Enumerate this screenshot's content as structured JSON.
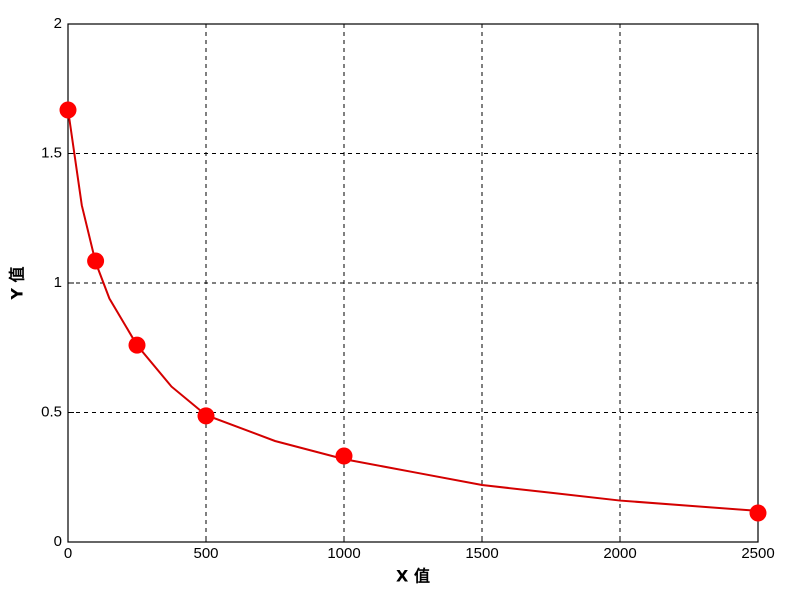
{
  "chart_data": {
    "type": "scatter",
    "xlabel": "X 值",
    "ylabel": "Y 值",
    "xlim": [
      0,
      2500
    ],
    "xticks": [
      0,
      500,
      1000,
      1500,
      2000,
      2500
    ],
    "ylim": [
      0,
      2
    ],
    "yticks": [
      0,
      0.5,
      1,
      1.5,
      2
    ],
    "grid": true,
    "series": [
      {
        "mode": "line",
        "color": "#d40000",
        "x": [
          0,
          50,
          100,
          150,
          250,
          375,
          500,
          750,
          1000,
          1250,
          1500,
          1750,
          2000,
          2250,
          2500
        ],
        "values": [
          1.67,
          1.3,
          1.08,
          0.94,
          0.76,
          0.6,
          0.49,
          0.39,
          0.32,
          0.27,
          0.22,
          0.19,
          0.16,
          0.14,
          0.12
        ]
      },
      {
        "mode": "markers",
        "color": "#ff0000",
        "x": [
          0,
          100,
          250,
          500,
          1000,
          2500
        ],
        "values": [
          1.668,
          1.085,
          0.76,
          0.487,
          0.332,
          0.112
        ]
      }
    ]
  }
}
